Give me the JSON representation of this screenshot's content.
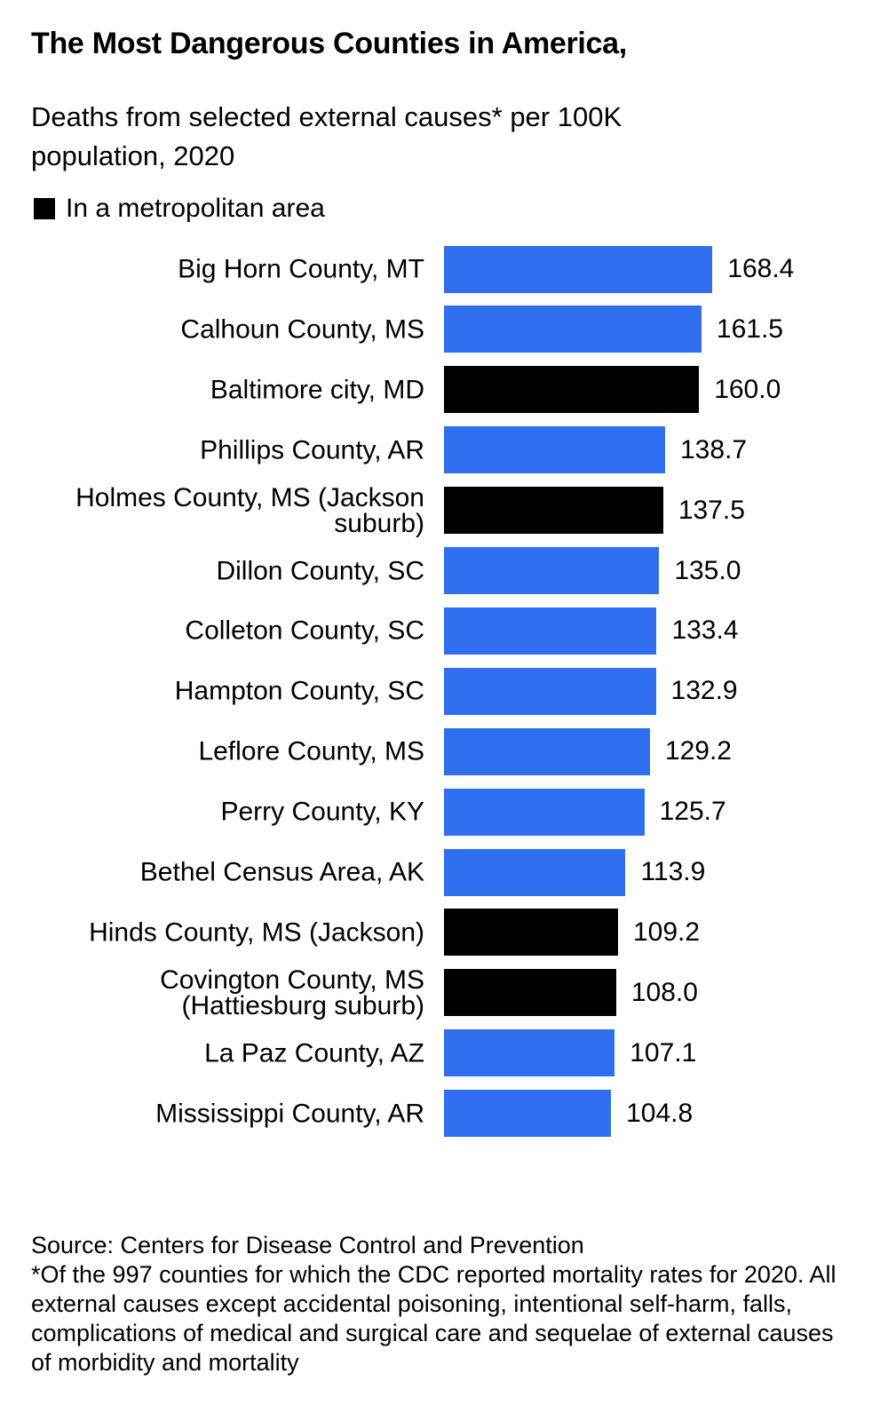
{
  "chart_data": {
    "type": "bar",
    "orientation": "horizontal",
    "title": "The Most Dangerous Counties in America,",
    "subtitle": "Deaths from selected external causes* per 100K population, 2020",
    "legend": {
      "label": "In a metropolitan area",
      "color": "#000000"
    },
    "categories": [
      "Big Horn County, MT",
      "Calhoun County, MS",
      "Baltimore city, MD",
      "Phillips County, AR",
      "Holmes County, MS (Jackson suburb)",
      "Dillon County, SC",
      "Colleton County, SC",
      "Hampton County, SC",
      "Leflore County, MS",
      "Perry County, KY",
      "Bethel Census Area, AK",
      "Hinds County, MS (Jackson)",
      "Covington County, MS (Hattiesburg suburb)",
      "La Paz County, AZ",
      "Mississippi County, AR"
    ],
    "values": [
      168.4,
      161.5,
      160.0,
      138.7,
      137.5,
      135.0,
      133.4,
      132.9,
      129.2,
      125.7,
      113.9,
      109.2,
      108.0,
      107.1,
      104.8
    ],
    "value_labels": [
      "168.4",
      "161.5",
      "160.0",
      "138.7",
      "137.5",
      "135.0",
      "133.4",
      "132.9",
      "129.2",
      "125.7",
      "113.9",
      "109.2",
      "108.0",
      "107.1",
      "104.8"
    ],
    "colors": [
      "#2f6fef",
      "#2f6fef",
      "#000000",
      "#2f6fef",
      "#000000",
      "#2f6fef",
      "#2f6fef",
      "#2f6fef",
      "#2f6fef",
      "#2f6fef",
      "#2f6fef",
      "#000000",
      "#000000",
      "#2f6fef",
      "#2f6fef"
    ],
    "source": "Source: Centers for Disease Control and Prevention",
    "note": "*Of the 997 counties for which the CDC reported mortality rates for 2020. All external causes except accidental poisoning, intentional self-harm, falls, complications of medical and surgical care and sequelae of external causes of morbidity and mortality"
  }
}
